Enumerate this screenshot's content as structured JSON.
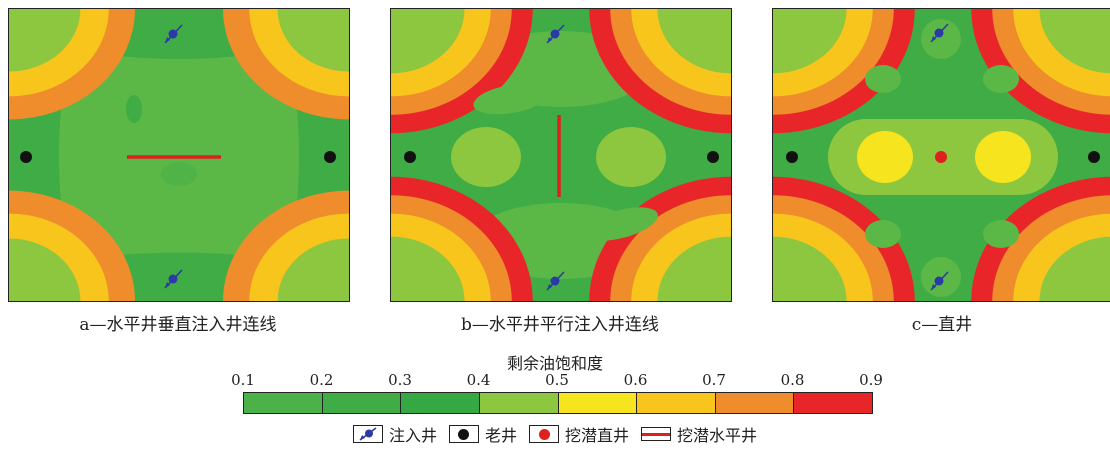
{
  "panels": [
    {
      "id": "a",
      "caption": "a—水平井垂直注入井连线"
    },
    {
      "id": "b",
      "caption": "b—水平井平行注入井连线"
    },
    {
      "id": "c",
      "caption": "c—直井"
    }
  ],
  "colorbar": {
    "title": "剩余油饱和度",
    "ticks": [
      "0.1",
      "0.2",
      "0.3",
      "0.4",
      "0.5",
      "0.6",
      "0.7",
      "0.8",
      "0.9"
    ],
    "colors": [
      "#4cb148",
      "#3fac45",
      "#35a843",
      "#8dc63f",
      "#f5e41e",
      "#f7c51c",
      "#ef8c2c",
      "#e8262a"
    ]
  },
  "legend": {
    "injection_well": "注入井",
    "old_well": "老井",
    "potential_vertical_well": "挖潜直井",
    "potential_horizontal_well": "挖潜水平井",
    "colors": {
      "injection": "#2b3aa6",
      "old": "#111111",
      "potential": "#e0201e"
    }
  }
}
